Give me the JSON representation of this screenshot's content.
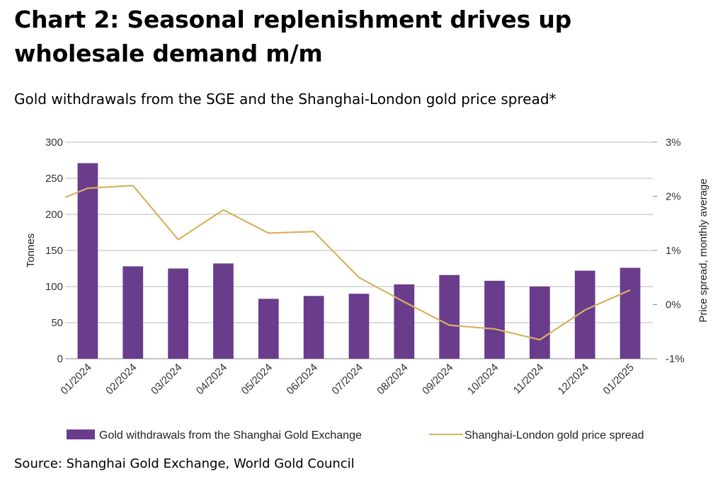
{
  "title": "Chart 2: Seasonal replenishment drives up wholesale demand m/m",
  "subtitle": "Gold withdrawals from the SGE and the Shanghai-London gold price spread*",
  "source": "Source: Shanghai Gold Exchange, World Gold Council",
  "colors": {
    "bar": "#6a3c8c",
    "line": "#d7b25e",
    "grid": "#b9b9b9",
    "axis": "#888888"
  },
  "chart_data": {
    "type": "bar",
    "categories": [
      "01/2024",
      "02/2024",
      "03/2024",
      "04/2024",
      "05/2024",
      "06/2024",
      "07/2024",
      "08/2024",
      "09/2024",
      "10/2024",
      "11/2024",
      "12/2024",
      "01/2025"
    ],
    "series": [
      {
        "name": "Gold withdrawals from the Shanghai Gold Exchange",
        "type": "bar",
        "axis": "left",
        "values": [
          271,
          128,
          125,
          132,
          83,
          87,
          90,
          103,
          116,
          108,
          100,
          122,
          126
        ]
      },
      {
        "name": "Shanghai-London gold price spread",
        "type": "line",
        "axis": "right",
        "values": [
          2.15,
          2.2,
          1.2,
          1.75,
          1.32,
          1.35,
          0.5,
          0.05,
          -0.38,
          -0.45,
          -0.65,
          -0.1,
          0.27
        ],
        "start_value": 1.98,
        "start_x": 0.5
      }
    ],
    "ylabel": "Tonnes",
    "y2label": "Price spread, monthly average",
    "ylim": [
      0,
      300
    ],
    "y2lim": [
      -1,
      3
    ],
    "yticks": [
      "300",
      "250",
      "200",
      "150",
      "100",
      "50",
      "0"
    ],
    "y2ticks": [
      "3%",
      "2%",
      "1%",
      "0%",
      "-1%"
    ],
    "grid": true,
    "legend_position": "bottom"
  }
}
